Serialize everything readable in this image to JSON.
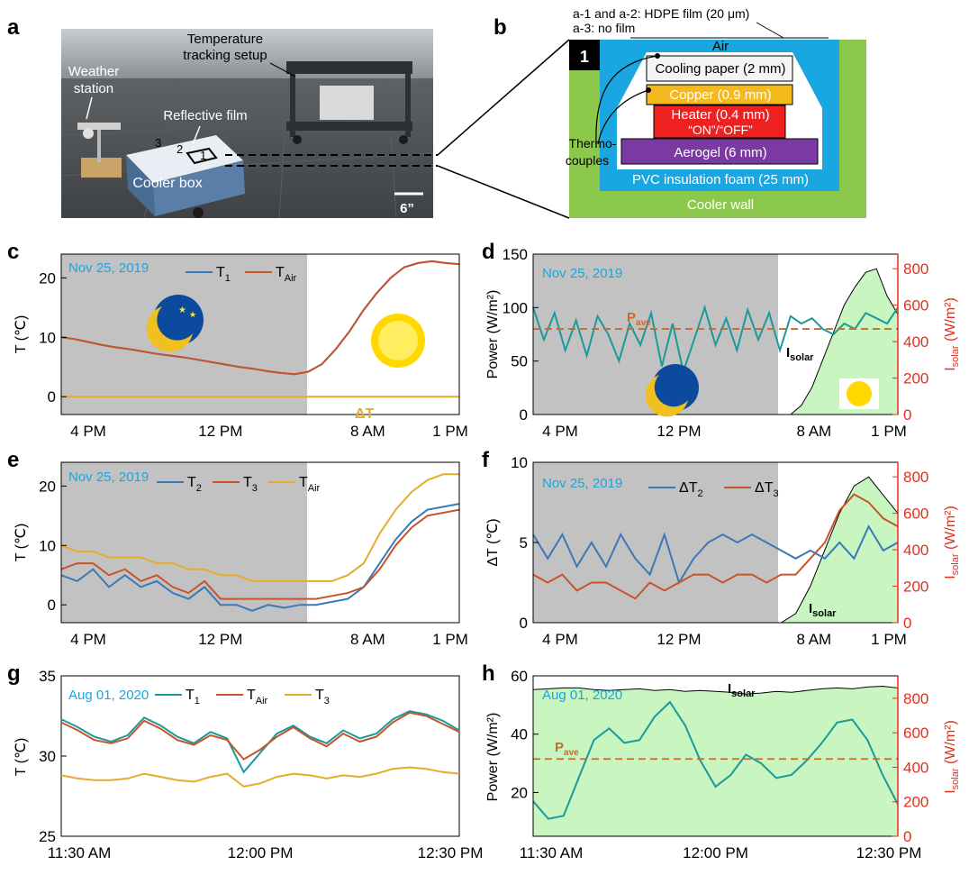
{
  "panel_letters": {
    "a": "a",
    "b": "b",
    "c": "c",
    "d": "d",
    "e": "e",
    "f": "f",
    "g": "g",
    "h": "h"
  },
  "photo": {
    "labels": {
      "temperature": "Temperature",
      "tracking": "tracking setup",
      "weather1": "Weather",
      "weather2": "station",
      "reflective": "Reflective film",
      "cooler": "Cooler box",
      "n1": "1",
      "n2": "2",
      "n3": "3",
      "scale": "6”"
    }
  },
  "schematic": {
    "film_note_1": "a-1 and a-2: HDPE film (20 μm)",
    "film_note_2": "a-3: no film",
    "air": "Air",
    "chamber": "1",
    "layers": {
      "cooling_paper": "Cooling paper (2 mm)",
      "copper": "Copper (0.9 mm)",
      "heater": "Heater (0.4 mm)",
      "heater_state": "“ON”/“OFF”",
      "aerogel": "Aerogel (6 mm)",
      "pvc": "PVC insulation foam (25 mm)",
      "wall": "Cooler wall"
    },
    "thermo_1": "Thermo-",
    "thermo_2": "couples"
  },
  "colors": {
    "blue": "#3a79b8",
    "red": "#c7542a",
    "gold": "#e1ad2a",
    "teal": "#1a9a9a",
    "night": "#c2c2c2",
    "green": "#c8f5c0",
    "cyanText": "#1aa6e0",
    "axisRed": "#e03020",
    "darkred": "#c96a2a"
  },
  "chart_data": [
    {
      "id": "c",
      "type": "line",
      "date": "Nov 25, 2019",
      "ylabel": "T (℃)",
      "ylim": [
        -3,
        24
      ],
      "yticks": [
        "0",
        "10",
        "20"
      ],
      "xticks": [
        "4 PM",
        "12 PM",
        "8 AM",
        "1 PM"
      ],
      "legend": {
        "s1": "T",
        "s1sub": "1",
        "s2": "T",
        "s2sub": "Air"
      },
      "annotation": "ΔT",
      "series": [
        {
          "name": "T1",
          "values": [
            10,
            9.7,
            9.2,
            8.7,
            8.3,
            8.0,
            7.6,
            7.2,
            6.9,
            6.6,
            6.2,
            5.8,
            5.4,
            5.0,
            4.7,
            4.3,
            4.0,
            3.8,
            4.2,
            5.5,
            8.0,
            11.0,
            14.5,
            17.5,
            20.0,
            21.8,
            22.5,
            22.8,
            22.5,
            22.3
          ]
        },
        {
          "name": "TAir",
          "values": [
            10,
            9.7,
            9.2,
            8.7,
            8.3,
            8.0,
            7.6,
            7.2,
            6.9,
            6.6,
            6.2,
            5.8,
            5.4,
            5.0,
            4.7,
            4.3,
            4.0,
            3.8,
            4.2,
            5.5,
            8.0,
            11.0,
            14.5,
            17.5,
            20.0,
            21.8,
            22.5,
            22.8,
            22.5,
            22.3
          ]
        },
        {
          "name": "dT",
          "values": [
            0,
            0,
            0,
            0,
            0,
            0,
            0,
            0,
            0,
            0,
            0,
            0,
            0,
            0,
            0,
            0,
            0,
            0,
            0,
            0,
            0,
            0,
            0,
            0,
            0,
            0,
            0,
            0,
            0,
            0
          ]
        }
      ]
    },
    {
      "id": "d",
      "type": "line",
      "date": "Nov 25, 2019",
      "ylabel": "Power (W/m²)",
      "ylim": [
        0,
        150
      ],
      "yticks": [
        "0",
        "50",
        "100",
        "150"
      ],
      "y2label": "I",
      "y2sub": "solar",
      "y2unit": " (W/m²)",
      "y2lim": [
        0,
        880
      ],
      "y2ticks": [
        "0",
        "200",
        "400",
        "600",
        "800"
      ],
      "xticks": [
        "4 PM",
        "12 PM",
        "8 AM",
        "1 PM"
      ],
      "pave": "P",
      "pavesub": "ave",
      "pave_value": 80,
      "isolar_label": "I",
      "isolar_sub": "solar",
      "power": [
        100,
        70,
        95,
        60,
        88,
        55,
        92,
        75,
        50,
        85,
        65,
        95,
        45,
        85,
        40,
        70,
        100,
        65,
        90,
        60,
        98,
        70,
        95,
        60,
        92,
        85,
        90,
        80,
        75,
        85,
        80,
        95,
        90,
        85,
        100
      ],
      "isolar": [
        0,
        0,
        0,
        0,
        0,
        0,
        0,
        0,
        0,
        0,
        0,
        0,
        0,
        0,
        0,
        0,
        0,
        0,
        0,
        0,
        0,
        0,
        0,
        0,
        0,
        50,
        150,
        300,
        450,
        600,
        700,
        780,
        800,
        650,
        550
      ]
    },
    {
      "id": "e",
      "type": "line",
      "date": "Nov 25, 2019",
      "ylabel": "T (℃)",
      "ylim": [
        -3,
        24
      ],
      "yticks": [
        "0",
        "10",
        "20"
      ],
      "xticks": [
        "4 PM",
        "12 PM",
        "8 AM",
        "1 PM"
      ],
      "legend": {
        "s1": "T",
        "s1sub": "2",
        "s2": "T",
        "s2sub": "3",
        "s3": "T",
        "s3sub": "Air"
      },
      "series": [
        {
          "name": "T2",
          "values": [
            5,
            4,
            6,
            3,
            5,
            3,
            4,
            2,
            1,
            3,
            0,
            0,
            -1,
            0,
            -0.5,
            0,
            0,
            0.5,
            1,
            3,
            7,
            11,
            14,
            16,
            16.5,
            17
          ]
        },
        {
          "name": "T3",
          "values": [
            6,
            7,
            7,
            5,
            6,
            4,
            5,
            3,
            2,
            4,
            1,
            1,
            1,
            1,
            1,
            1,
            1,
            1.5,
            2,
            3,
            6,
            10,
            13,
            15,
            15.5,
            16
          ]
        },
        {
          "name": "TAir",
          "values": [
            10,
            9,
            9,
            8,
            8,
            8,
            7,
            7,
            6,
            6,
            5,
            5,
            4,
            4,
            4,
            4,
            4,
            4,
            5,
            7,
            12,
            16,
            19,
            21,
            22,
            22
          ]
        }
      ]
    },
    {
      "id": "f",
      "type": "line",
      "date": "Nov 25, 2019",
      "ylabel": "ΔT (℃)",
      "ylim": [
        0,
        10
      ],
      "yticks": [
        "0",
        "5",
        "10"
      ],
      "y2label": "I",
      "y2sub": "solar",
      "y2unit": " (W/m²)",
      "y2lim": [
        0,
        880
      ],
      "y2ticks": [
        "0",
        "200",
        "400",
        "600",
        "800"
      ],
      "xticks": [
        "4 PM",
        "12 PM",
        "8 AM",
        "1 PM"
      ],
      "legend": {
        "s1": "ΔT",
        "s1sub": "2",
        "s2": "ΔT",
        "s2sub": "3"
      },
      "isolar_label": "I",
      "isolar_sub": "solar",
      "series": [
        {
          "name": "dT2",
          "values": [
            5.5,
            4,
            5.5,
            3.5,
            5,
            3.5,
            5.5,
            4,
            3,
            5.5,
            2.5,
            4,
            5,
            5.5,
            5,
            5.5,
            5,
            4.5,
            4,
            4.5,
            4,
            5,
            4,
            6,
            4.5,
            5
          ]
        },
        {
          "name": "dT3",
          "values": [
            3,
            2.5,
            3,
            2,
            2.5,
            2.5,
            2,
            1.5,
            2.5,
            2,
            2.5,
            3,
            3,
            2.5,
            3,
            3,
            2.5,
            3,
            3,
            4,
            5,
            7,
            8,
            7.5,
            6.5,
            6
          ]
        }
      ],
      "isolar": [
        0,
        0,
        0,
        0,
        0,
        0,
        0,
        0,
        0,
        0,
        0,
        0,
        0,
        0,
        0,
        0,
        0,
        0,
        50,
        200,
        400,
        600,
        750,
        800,
        700,
        600
      ]
    },
    {
      "id": "g",
      "type": "line",
      "date": "Aug 01, 2020",
      "ylabel": "T (℃)",
      "ylim": [
        25,
        35
      ],
      "yticks": [
        "25",
        "30",
        "35"
      ],
      "xticks": [
        "11:30 AM",
        "12:00 PM",
        "12:30 PM"
      ],
      "legend": {
        "s1": "T",
        "s1sub": "1",
        "s2": "T",
        "s2sub": "Air",
        "s3": "T",
        "s3sub": "3"
      },
      "series": [
        {
          "name": "T1",
          "values": [
            32.3,
            31.8,
            31.2,
            30.9,
            31.3,
            32.4,
            31.9,
            31.2,
            30.8,
            31.5,
            31.1,
            29.0,
            30.2,
            31.4,
            31.9,
            31.2,
            30.8,
            31.6,
            31.1,
            31.4,
            32.3,
            32.8,
            32.6,
            32.2,
            31.6
          ]
        },
        {
          "name": "TAir",
          "values": [
            32.1,
            31.6,
            31.0,
            30.8,
            31.1,
            32.2,
            31.7,
            31.0,
            30.7,
            31.3,
            31.0,
            29.8,
            30.4,
            31.2,
            31.8,
            31.1,
            30.6,
            31.4,
            30.9,
            31.2,
            32.1,
            32.7,
            32.5,
            32.0,
            31.5
          ]
        },
        {
          "name": "T3",
          "values": [
            28.8,
            28.6,
            28.5,
            28.5,
            28.6,
            28.9,
            28.7,
            28.5,
            28.4,
            28.7,
            28.9,
            28.1,
            28.3,
            28.7,
            28.9,
            28.8,
            28.6,
            28.8,
            28.7,
            28.9,
            29.2,
            29.3,
            29.2,
            29.0,
            28.9
          ]
        }
      ]
    },
    {
      "id": "h",
      "type": "line",
      "date": "Aug 01, 2020",
      "ylabel": "Power (W/m²)",
      "ylim": [
        5,
        60
      ],
      "yticks": [
        "20",
        "40",
        "60"
      ],
      "y2label": "I",
      "y2sub": "solar",
      "y2unit": " (W/m²)",
      "y2lim": [
        0,
        930
      ],
      "y2ticks": [
        "0",
        "200",
        "400",
        "600",
        "800"
      ],
      "xticks": [
        "11:30 AM",
        "12:00 PM",
        "12:30 PM"
      ],
      "pave": "P",
      "pavesub": "ave",
      "pave_value": 31.5,
      "isolar_label": "I",
      "isolar_sub": "solar",
      "power": [
        17,
        11,
        12,
        25,
        38,
        42,
        37,
        38,
        46,
        51,
        43,
        31,
        22,
        26,
        33,
        30,
        25,
        26,
        31,
        37,
        44,
        45,
        38,
        26,
        16
      ],
      "isolar": [
        850,
        855,
        860,
        860,
        850,
        845,
        850,
        855,
        845,
        850,
        840,
        845,
        840,
        835,
        825,
        830,
        840,
        835,
        845,
        855,
        860,
        855,
        865,
        870,
        860
      ]
    }
  ]
}
